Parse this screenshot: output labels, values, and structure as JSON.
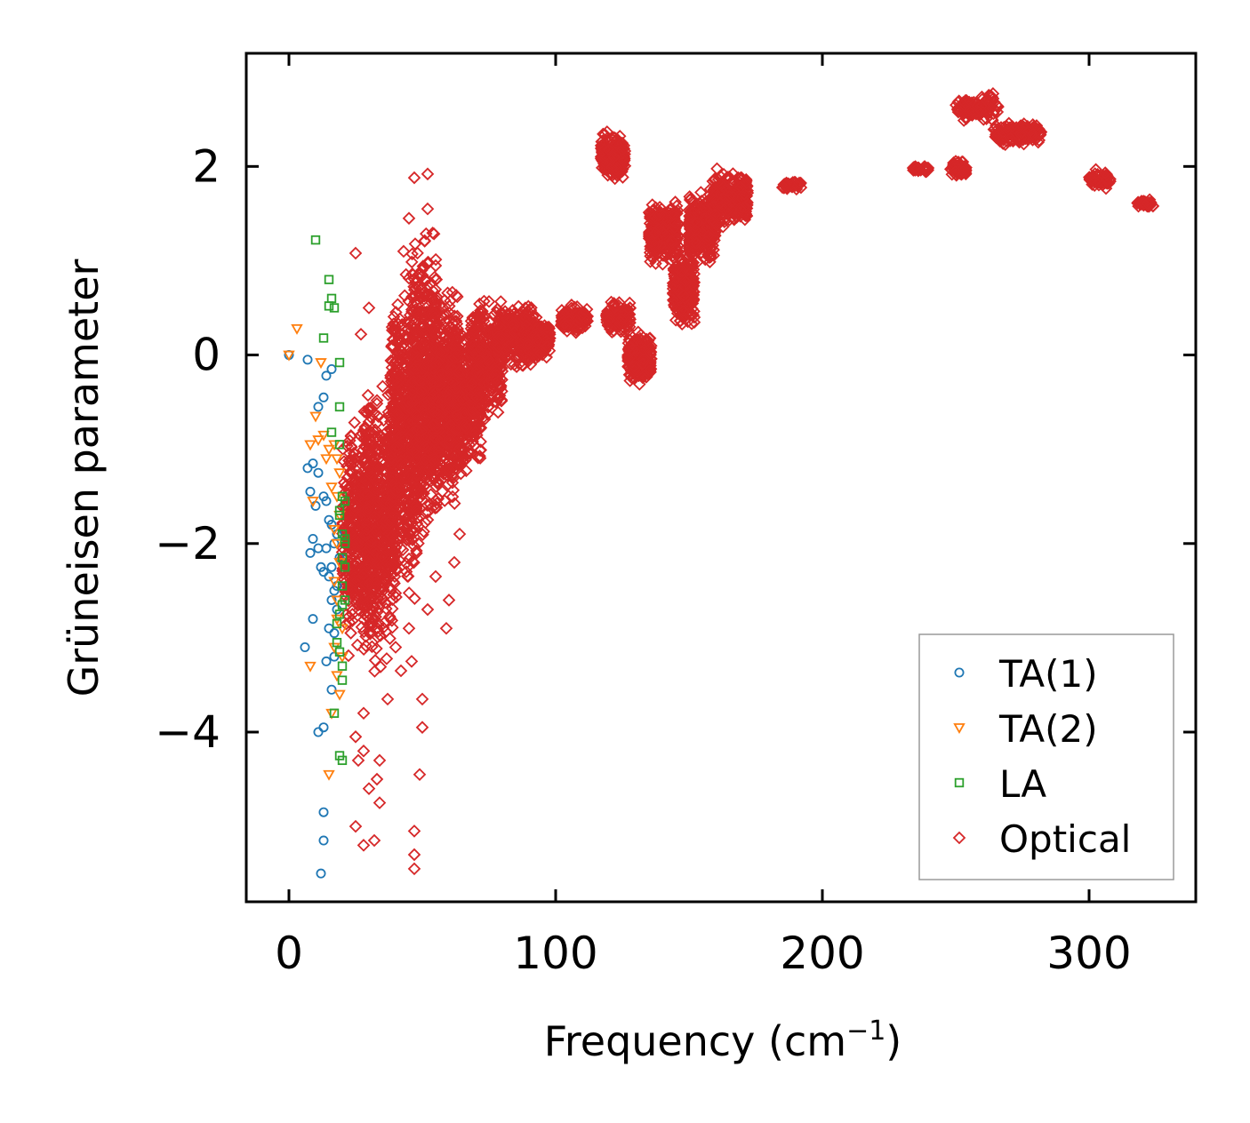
{
  "chart_data": {
    "type": "scatter",
    "title": "",
    "xlabel": "Frequency (cm",
    "xlabel_sup": "−1",
    "xlabel_suffix": ")",
    "ylabel": "Grüneisen parameter",
    "xlim": [
      -16,
      340
    ],
    "ylim": [
      -5.8,
      3.2
    ],
    "xticks": [
      0,
      100,
      200,
      300
    ],
    "xtick_labels": [
      "0",
      "100",
      "200",
      "300"
    ],
    "yticks": [
      2,
      0,
      -2,
      -4
    ],
    "ytick_labels": [
      "2",
      "0",
      "−2",
      "−4"
    ],
    "grid": false,
    "legend_position": "bottom-right",
    "series": [
      {
        "name": "TA(1)",
        "marker": "circle",
        "color": "#1f77b4",
        "points": [
          [
            0,
            0
          ],
          [
            7,
            -0.05
          ],
          [
            11,
            -0.55
          ],
          [
            13,
            -0.45
          ],
          [
            14,
            -0.22
          ],
          [
            16,
            -0.15
          ],
          [
            7,
            -1.2
          ],
          [
            9,
            -1.15
          ],
          [
            11,
            -1.25
          ],
          [
            8,
            -1.45
          ],
          [
            10,
            -1.6
          ],
          [
            13,
            -1.5
          ],
          [
            15,
            -1.75
          ],
          [
            16,
            -1.8
          ],
          [
            17,
            -2.0
          ],
          [
            18,
            -1.9
          ],
          [
            14,
            -2.05
          ],
          [
            12,
            -2.25
          ],
          [
            13,
            -2.3
          ],
          [
            15,
            -2.35
          ],
          [
            9,
            -1.95
          ],
          [
            8,
            -2.1
          ],
          [
            11,
            -2.05
          ],
          [
            17,
            -2.5
          ],
          [
            16,
            -2.6
          ],
          [
            15,
            -2.9
          ],
          [
            17,
            -2.95
          ],
          [
            9,
            -2.8
          ],
          [
            6,
            -3.1
          ],
          [
            14,
            -3.25
          ],
          [
            17,
            -3.2
          ],
          [
            16,
            -3.55
          ],
          [
            11,
            -4.0
          ],
          [
            13,
            -3.95
          ],
          [
            13,
            -4.85
          ],
          [
            13,
            -5.15
          ],
          [
            12,
            -5.5
          ],
          [
            18,
            -2.45
          ],
          [
            19,
            -2.15
          ],
          [
            14,
            -1.55
          ],
          [
            16,
            -2.25
          ],
          [
            18,
            -2.7
          ]
        ]
      },
      {
        "name": "TA(2)",
        "marker": "triangle-down",
        "color": "#ff7f0e",
        "points": [
          [
            0,
            0
          ],
          [
            3,
            0.28
          ],
          [
            10,
            -0.65
          ],
          [
            8,
            -0.95
          ],
          [
            11,
            -0.9
          ],
          [
            12,
            -0.08
          ],
          [
            14,
            -1.1
          ],
          [
            15,
            -1.0
          ],
          [
            17,
            -0.95
          ],
          [
            18,
            -1.1
          ],
          [
            16,
            -1.4
          ],
          [
            9,
            -1.55
          ],
          [
            18,
            -1.5
          ],
          [
            19,
            -1.7
          ],
          [
            17,
            -1.85
          ],
          [
            18,
            -2.0
          ],
          [
            19,
            -2.2
          ],
          [
            17,
            -2.4
          ],
          [
            18,
            -2.6
          ],
          [
            18,
            -2.8
          ],
          [
            8,
            -3.3
          ],
          [
            17,
            -3.1
          ],
          [
            18,
            -3.4
          ],
          [
            19,
            -3.6
          ],
          [
            15,
            -4.45
          ],
          [
            16,
            -3.8
          ],
          [
            20,
            -2.9
          ],
          [
            19,
            -1.25
          ],
          [
            13,
            -0.85
          ],
          [
            20,
            -3.2
          ]
        ]
      },
      {
        "name": "LA",
        "marker": "square",
        "color": "#2ca02c",
        "points": [
          [
            10,
            1.22
          ],
          [
            15,
            0.8
          ],
          [
            16,
            0.6
          ],
          [
            15,
            0.52
          ],
          [
            17,
            0.5
          ],
          [
            13,
            0.18
          ],
          [
            19,
            -0.08
          ],
          [
            19,
            -0.55
          ],
          [
            16,
            -0.82
          ],
          [
            19,
            -0.95
          ],
          [
            20,
            -1.5
          ],
          [
            21,
            -1.55
          ],
          [
            19,
            -1.7
          ],
          [
            20,
            -1.9
          ],
          [
            21,
            -1.95
          ],
          [
            20,
            -2.15
          ],
          [
            21,
            -2.25
          ],
          [
            20,
            -2.45
          ],
          [
            21,
            -2.6
          ],
          [
            19,
            -2.75
          ],
          [
            18,
            -2.85
          ],
          [
            18,
            -3.05
          ],
          [
            19,
            -3.15
          ],
          [
            20,
            -3.3
          ],
          [
            20,
            -3.45
          ],
          [
            17,
            -3.8
          ],
          [
            19,
            -4.25
          ],
          [
            20,
            -4.3
          ],
          [
            20,
            -2.65
          ],
          [
            21,
            -2.0
          ],
          [
            19,
            -1.65
          ]
        ]
      },
      {
        "name": "Optical",
        "marker": "diamond",
        "color": "#d62728",
        "points": [],
        "clusters": [
          {
            "x": [
              20,
              32
            ],
            "y": [
              -3.5,
              -0.4
            ],
            "n": 420
          },
          {
            "x": [
              28,
              40
            ],
            "y": [
              -3.5,
              0.1
            ],
            "n": 520
          },
          {
            "x": [
              38,
              48
            ],
            "y": [
              -2.9,
              1.2
            ],
            "n": 520
          },
          {
            "x": [
              46,
              56
            ],
            "y": [
              -2.3,
              1.5
            ],
            "n": 600
          },
          {
            "x": [
              54,
              64
            ],
            "y": [
              -1.8,
              0.9
            ],
            "n": 520
          },
          {
            "x": [
              60,
              72
            ],
            "y": [
              -1.4,
              0.45
            ],
            "n": 380
          },
          {
            "x": [
              68,
              80
            ],
            "y": [
              -0.8,
              0.7
            ],
            "n": 330
          },
          {
            "x": [
              78,
              92
            ],
            "y": [
              -0.2,
              0.6
            ],
            "n": 300
          },
          {
            "x": [
              88,
              98
            ],
            "y": [
              -0.1,
              0.45
            ],
            "n": 200
          },
          {
            "x": [
              102,
              112
            ],
            "y": [
              0.2,
              0.55
            ],
            "n": 150
          },
          {
            "x": [
              117,
              126
            ],
            "y": [
              1.8,
              2.4
            ],
            "n": 200
          },
          {
            "x": [
              119,
              128
            ],
            "y": [
              0.2,
              0.6
            ],
            "n": 140
          },
          {
            "x": [
              127,
              136
            ],
            "y": [
              -0.35,
              0.3
            ],
            "n": 240
          },
          {
            "x": [
              135,
              146
            ],
            "y": [
              0.9,
              1.7
            ],
            "n": 300
          },
          {
            "x": [
              144,
              152
            ],
            "y": [
              0.2,
              1.2
            ],
            "n": 260
          },
          {
            "x": [
              150,
              160
            ],
            "y": [
              0.9,
              1.8
            ],
            "n": 300
          },
          {
            "x": [
              158,
              172
            ],
            "y": [
              1.3,
              2.0
            ],
            "n": 320
          },
          {
            "x": [
              185,
              192
            ],
            "y": [
              1.75,
              1.85
            ],
            "n": 40
          },
          {
            "x": [
              234,
              240
            ],
            "y": [
              1.93,
              2.02
            ],
            "n": 40
          },
          {
            "x": [
              248,
              254
            ],
            "y": [
              1.85,
              2.08
            ],
            "n": 60
          },
          {
            "x": [
              250,
              266
            ],
            "y": [
              2.45,
              2.8
            ],
            "n": 110
          },
          {
            "x": [
              264,
              282
            ],
            "y": [
              2.2,
              2.5
            ],
            "n": 150
          },
          {
            "x": [
              300,
              308
            ],
            "y": [
              1.75,
              1.98
            ],
            "n": 60
          },
          {
            "x": [
              318,
              324
            ],
            "y": [
              1.55,
              1.65
            ],
            "n": 40
          }
        ],
        "outliers": [
          [
            25,
            1.08
          ],
          [
            47,
            1.88
          ],
          [
            52,
            1.92
          ],
          [
            52,
            1.55
          ],
          [
            45,
            1.45
          ],
          [
            43,
            1.1
          ],
          [
            27,
            0.22
          ],
          [
            30,
            0.5
          ],
          [
            25,
            -4.05
          ],
          [
            28,
            -4.2
          ],
          [
            34,
            -4.3
          ],
          [
            33,
            -4.5
          ],
          [
            34,
            -4.75
          ],
          [
            28,
            -5.2
          ],
          [
            32,
            -5.15
          ],
          [
            25,
            -5.0
          ],
          [
            47,
            -5.05
          ],
          [
            47,
            -5.3
          ],
          [
            47,
            -5.45
          ],
          [
            49,
            -4.45
          ],
          [
            50,
            -3.95
          ],
          [
            50,
            -3.65
          ],
          [
            46,
            -3.25
          ],
          [
            42,
            -3.35
          ],
          [
            37,
            -3.65
          ],
          [
            28,
            -3.8
          ],
          [
            40,
            -3.1
          ],
          [
            52,
            -2.7
          ],
          [
            59,
            -2.9
          ],
          [
            60,
            -2.6
          ],
          [
            62,
            -2.2
          ],
          [
            64,
            -1.9
          ],
          [
            26,
            -4.3
          ],
          [
            45,
            -2.9
          ],
          [
            55,
            -2.35
          ],
          [
            30,
            -4.6
          ]
        ]
      }
    ]
  }
}
